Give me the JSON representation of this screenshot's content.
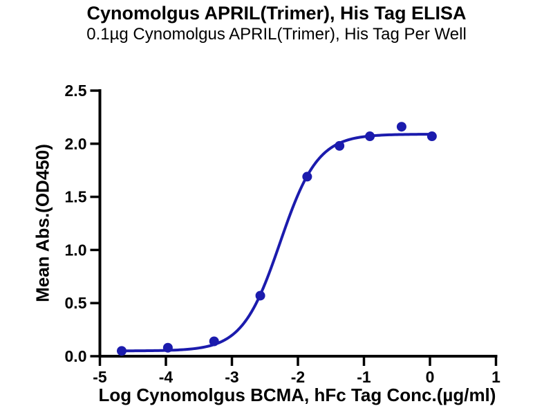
{
  "header": {
    "title": "Cynomolgus APRIL(Trimer), His Tag ELISA",
    "subtitle": "0.1µg Cynomolgus APRIL(Trimer), His Tag Per Well"
  },
  "chart_data": {
    "type": "scatter",
    "title": "Cynomolgus APRIL(Trimer), His Tag ELISA",
    "subtitle": "0.1µg Cynomolgus APRIL(Trimer), His Tag Per Well",
    "xlabel": "Log Cynomolgus BCMA, hFc Tag Conc.(µg/ml)",
    "ylabel": "Mean Abs.(OD450)",
    "xlim": [
      -5,
      1
    ],
    "ylim": [
      0,
      2.5
    ],
    "grid": false,
    "legend": "none",
    "axis_color": "#000000",
    "x_ticks": [
      {
        "v": -5,
        "label": "-5"
      },
      {
        "v": -4,
        "label": "-4"
      },
      {
        "v": -3,
        "label": "-3"
      },
      {
        "v": -2,
        "label": "-2"
      },
      {
        "v": -1,
        "label": "-1"
      },
      {
        "v": 0,
        "label": "0"
      },
      {
        "v": 1,
        "label": "1"
      }
    ],
    "y_ticks": [
      {
        "v": 0.0,
        "label": "0.0"
      },
      {
        "v": 0.5,
        "label": "0.5"
      },
      {
        "v": 1.0,
        "label": "1.0"
      },
      {
        "v": 1.5,
        "label": "1.5"
      },
      {
        "v": 2.0,
        "label": "2.0"
      },
      {
        "v": 2.5,
        "label": "2.5"
      }
    ],
    "series": [
      {
        "name": "Cynomolgus BCMA, hFc Tag",
        "color": "#1b1bad",
        "marker": "circle",
        "marker_radius": 7,
        "line_width": 4,
        "points": [
          {
            "x": -4.67,
            "y": 0.05
          },
          {
            "x": -3.97,
            "y": 0.08
          },
          {
            "x": -3.27,
            "y": 0.14
          },
          {
            "x": -2.57,
            "y": 0.57
          },
          {
            "x": -1.86,
            "y": 1.69
          },
          {
            "x": -1.37,
            "y": 1.98
          },
          {
            "x": -0.91,
            "y": 2.07
          },
          {
            "x": -0.43,
            "y": 2.16
          },
          {
            "x": 0.03,
            "y": 2.07
          }
        ],
        "fit_curve": {
          "model": "4PL",
          "bottom": 0.05,
          "top": 2.09,
          "logEC50": -2.27,
          "hillslope": 1.52,
          "x_start": -4.67,
          "x_end": 0.03
        }
      }
    ]
  }
}
